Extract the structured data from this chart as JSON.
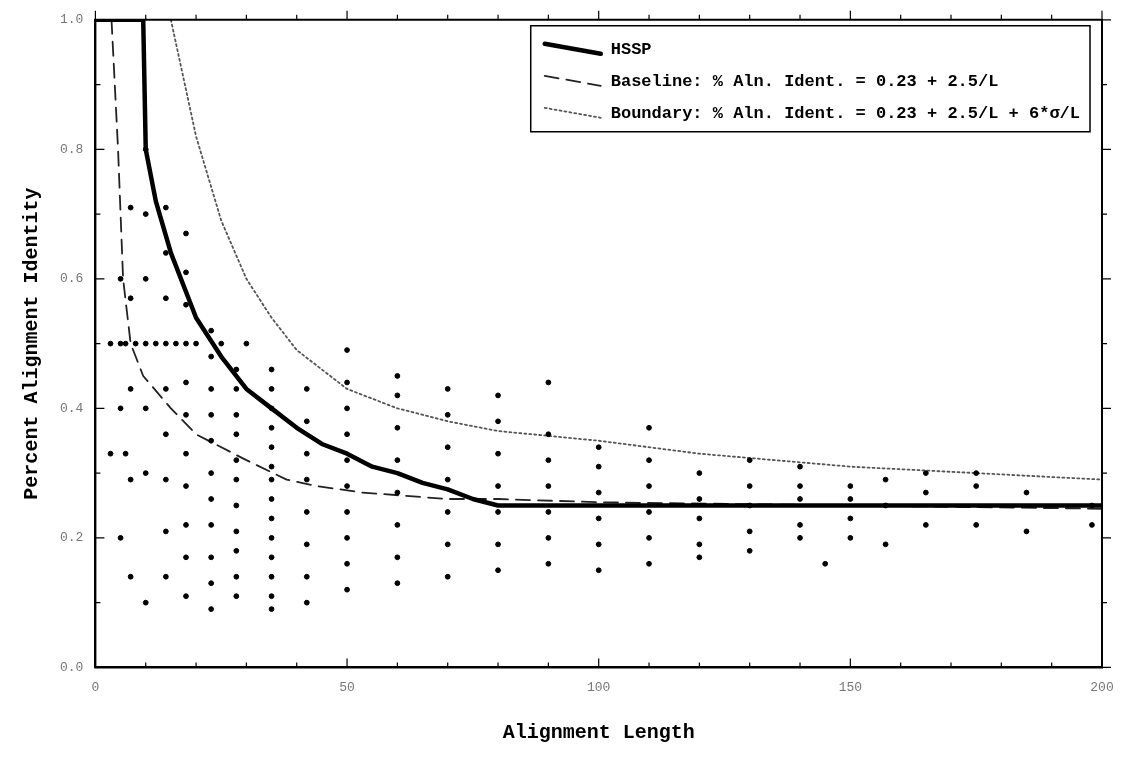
{
  "chart_data": {
    "type": "scatter",
    "xlabel": "Alignment Length",
    "ylabel": "Percent Alignment Identity",
    "xlim": [
      0,
      200
    ],
    "ylim": [
      0,
      1
    ],
    "xticks": [
      0,
      {
        "value": 10,
        "label": null
      },
      {
        "value": 20,
        "label": null
      },
      {
        "value": 30,
        "label": null
      },
      {
        "value": 40,
        "label": null
      },
      50,
      {
        "value": 60,
        "label": null
      },
      {
        "value": 70,
        "label": null
      },
      {
        "value": 80,
        "label": null
      },
      {
        "value": 90,
        "label": null
      },
      100,
      {
        "value": 110,
        "label": null
      },
      {
        "value": 120,
        "label": null
      },
      {
        "value": 130,
        "label": null
      },
      {
        "value": 140,
        "label": null
      },
      150,
      {
        "value": 160,
        "label": null
      },
      {
        "value": 170,
        "label": null
      },
      {
        "value": 180,
        "label": null
      },
      {
        "value": 190,
        "label": null
      },
      200
    ],
    "yticks": [
      {
        "value": 0,
        "label": "0.0"
      },
      {
        "value": 0.1,
        "label": null
      },
      0.2,
      {
        "value": 0.3,
        "label": null
      },
      0.4,
      {
        "value": 0.5,
        "label": null
      },
      0.6,
      {
        "value": 0.7,
        "label": null
      },
      0.8,
      {
        "value": 0.9,
        "label": null
      },
      {
        "value": 1,
        "label": "1.0"
      }
    ],
    "grid": false,
    "legend": "top right",
    "series": [
      {
        "type": "scatter",
        "color": "#000000",
        "marker": "circle",
        "x": [
          5,
          5,
          5,
          5,
          7,
          7,
          7,
          7,
          7,
          10,
          10,
          10,
          10,
          10,
          10,
          10,
          14,
          14,
          14,
          14,
          14,
          14,
          14,
          14,
          14,
          18,
          18,
          18,
          18,
          18,
          18,
          18,
          18,
          18,
          18,
          18,
          23,
          23,
          23,
          23,
          23,
          23,
          23,
          23,
          23,
          23,
          23,
          28,
          28,
          28,
          28,
          28,
          28,
          28,
          28,
          28,
          28,
          28,
          35,
          35,
          35,
          35,
          35,
          35,
          35,
          35,
          35,
          35,
          35,
          35,
          35,
          35,
          42,
          42,
          42,
          42,
          42,
          42,
          42,
          42,
          50,
          50,
          50,
          50,
          50,
          50,
          50,
          50,
          50,
          50,
          60,
          60,
          60,
          60,
          60,
          60,
          60,
          60,
          70,
          70,
          70,
          70,
          70,
          70,
          70,
          80,
          80,
          80,
          80,
          80,
          80,
          80,
          90,
          90,
          90,
          90,
          90,
          90,
          90,
          100,
          100,
          100,
          100,
          100,
          100,
          110,
          110,
          110,
          110,
          110,
          110,
          120,
          120,
          120,
          120,
          120,
          130,
          130,
          130,
          130,
          130,
          140,
          140,
          140,
          140,
          140,
          145,
          150,
          150,
          150,
          150,
          157,
          157,
          157,
          165,
          165,
          165,
          175,
          175,
          175,
          185,
          185,
          198,
          198,
          3,
          6,
          8,
          12,
          16,
          20,
          25,
          30,
          3,
          6
        ],
        "values": [
          0.2,
          0.4,
          0.5,
          0.6,
          0.14,
          0.29,
          0.43,
          0.57,
          0.71,
          0.1,
          0.3,
          0.4,
          0.5,
          0.6,
          0.7,
          0.8,
          0.14,
          0.21,
          0.29,
          0.36,
          0.43,
          0.5,
          0.57,
          0.64,
          0.71,
          0.11,
          0.17,
          0.22,
          0.28,
          0.33,
          0.39,
          0.44,
          0.5,
          0.56,
          0.61,
          0.67,
          0.09,
          0.13,
          0.17,
          0.22,
          0.26,
          0.3,
          0.35,
          0.39,
          0.43,
          0.48,
          0.52,
          0.11,
          0.14,
          0.18,
          0.21,
          0.25,
          0.29,
          0.32,
          0.36,
          0.39,
          0.43,
          0.46,
          0.09,
          0.11,
          0.14,
          0.17,
          0.2,
          0.23,
          0.26,
          0.29,
          0.31,
          0.34,
          0.37,
          0.4,
          0.43,
          0.46,
          0.1,
          0.14,
          0.19,
          0.24,
          0.29,
          0.33,
          0.38,
          0.43,
          0.12,
          0.16,
          0.2,
          0.24,
          0.28,
          0.32,
          0.36,
          0.4,
          0.44,
          0.49,
          0.13,
          0.17,
          0.22,
          0.27,
          0.32,
          0.37,
          0.42,
          0.45,
          0.14,
          0.19,
          0.24,
          0.29,
          0.34,
          0.39,
          0.43,
          0.15,
          0.19,
          0.24,
          0.28,
          0.33,
          0.38,
          0.42,
          0.16,
          0.2,
          0.24,
          0.28,
          0.32,
          0.36,
          0.44,
          0.15,
          0.19,
          0.23,
          0.27,
          0.31,
          0.34,
          0.16,
          0.2,
          0.24,
          0.28,
          0.32,
          0.37,
          0.17,
          0.19,
          0.23,
          0.26,
          0.3,
          0.18,
          0.21,
          0.25,
          0.28,
          0.32,
          0.2,
          0.22,
          0.26,
          0.28,
          0.31,
          0.16,
          0.2,
          0.23,
          0.26,
          0.28,
          0.19,
          0.25,
          0.29,
          0.22,
          0.27,
          0.3,
          0.22,
          0.28,
          0.3,
          0.21,
          0.27,
          0.22,
          0.25,
          0.5,
          0.5,
          0.5,
          0.5,
          0.5,
          0.5,
          0.5,
          0.5,
          0.33,
          0.33
        ]
      },
      {
        "name": "HSSP",
        "type": "line",
        "color": "#000000",
        "line_style": "solid",
        "marker": "none",
        "x": [
          0,
          9.5,
          10,
          12,
          15,
          20,
          25,
          30,
          35,
          40,
          45,
          50,
          55,
          60,
          65,
          70,
          75,
          80,
          200
        ],
        "values": [
          1,
          1,
          0.8,
          0.72,
          0.64,
          0.54,
          0.48,
          0.43,
          0.4,
          0.37,
          0.345,
          0.33,
          0.31,
          0.3,
          0.285,
          0.275,
          0.26,
          0.25,
          0.25
        ]
      },
      {
        "name": "Baseline: % Aln. Ident. = 0.23 + 2.5/L",
        "type": "line",
        "color": "#222222",
        "line_style": "dashed",
        "marker": "none",
        "x": [
          3.2,
          4.5,
          5.5,
          7,
          9.5,
          15,
          20,
          30,
          38,
          44,
          53,
          70,
          80,
          100,
          150,
          200
        ],
        "values": [
          1,
          0.8,
          0.6,
          0.5,
          0.45,
          0.4,
          0.36,
          0.32,
          0.29,
          0.28,
          0.27,
          0.26,
          0.26,
          0.255,
          0.25,
          0.245
        ]
      },
      {
        "name": "Boundary: % Aln. Ident. = 0.23 + 2.5/L + 6*σ/L",
        "type": "line",
        "color": "#555555",
        "line_style": "dotted",
        "marker": "none",
        "x": [
          15,
          20,
          25,
          30,
          35,
          40,
          50,
          60,
          70,
          80,
          100,
          120,
          150,
          175,
          200
        ],
        "values": [
          1,
          0.82,
          0.69,
          0.6,
          0.54,
          0.49,
          0.43,
          0.4,
          0.38,
          0.365,
          0.35,
          0.33,
          0.31,
          0.3,
          0.29
        ]
      }
    ]
  }
}
